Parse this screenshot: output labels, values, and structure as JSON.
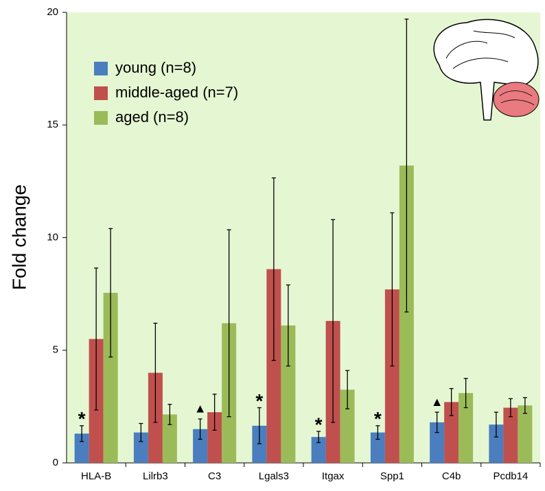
{
  "chart_data": {
    "type": "bar",
    "y_label": "Fold change",
    "categories": [
      "HLA-B",
      "Lilrb3",
      "C3",
      "Lgals3",
      "Itgax",
      "Spp1",
      "C4b",
      "Pcdb14"
    ],
    "series": [
      {
        "name": "young (n=8)",
        "color": "#4a7ebf",
        "values": [
          1.3,
          1.35,
          1.5,
          1.65,
          1.15,
          1.35,
          1.8,
          1.7
        ],
        "errors": [
          0.35,
          0.4,
          0.45,
          0.8,
          0.25,
          0.3,
          0.45,
          0.55
        ]
      },
      {
        "name": "middle-aged (n=7)",
        "color": "#c0504d",
        "values": [
          5.5,
          4.0,
          2.25,
          8.6,
          6.3,
          7.7,
          2.7,
          2.45
        ],
        "errors": [
          3.15,
          2.2,
          0.8,
          4.05,
          4.5,
          3.4,
          0.6,
          0.4
        ]
      },
      {
        "name": "aged (n=8)",
        "color": "#9bbb59",
        "values": [
          7.55,
          2.15,
          6.2,
          6.1,
          3.25,
          13.2,
          3.1,
          2.55
        ],
        "errors": [
          2.85,
          0.45,
          4.15,
          1.8,
          0.85,
          6.5,
          0.65,
          0.35
        ]
      }
    ],
    "annotations": [
      {
        "category": 0,
        "text": "*"
      },
      {
        "category": 2,
        "text": "▲"
      },
      {
        "category": 3,
        "text": "*"
      },
      {
        "category": 4,
        "text": "*"
      },
      {
        "category": 5,
        "text": "*"
      },
      {
        "category": 6,
        "text": "▲"
      }
    ],
    "background": "#e5f7d2",
    "ylim": [
      0,
      20
    ],
    "yticks": [
      0,
      5,
      10,
      15,
      20
    ]
  }
}
